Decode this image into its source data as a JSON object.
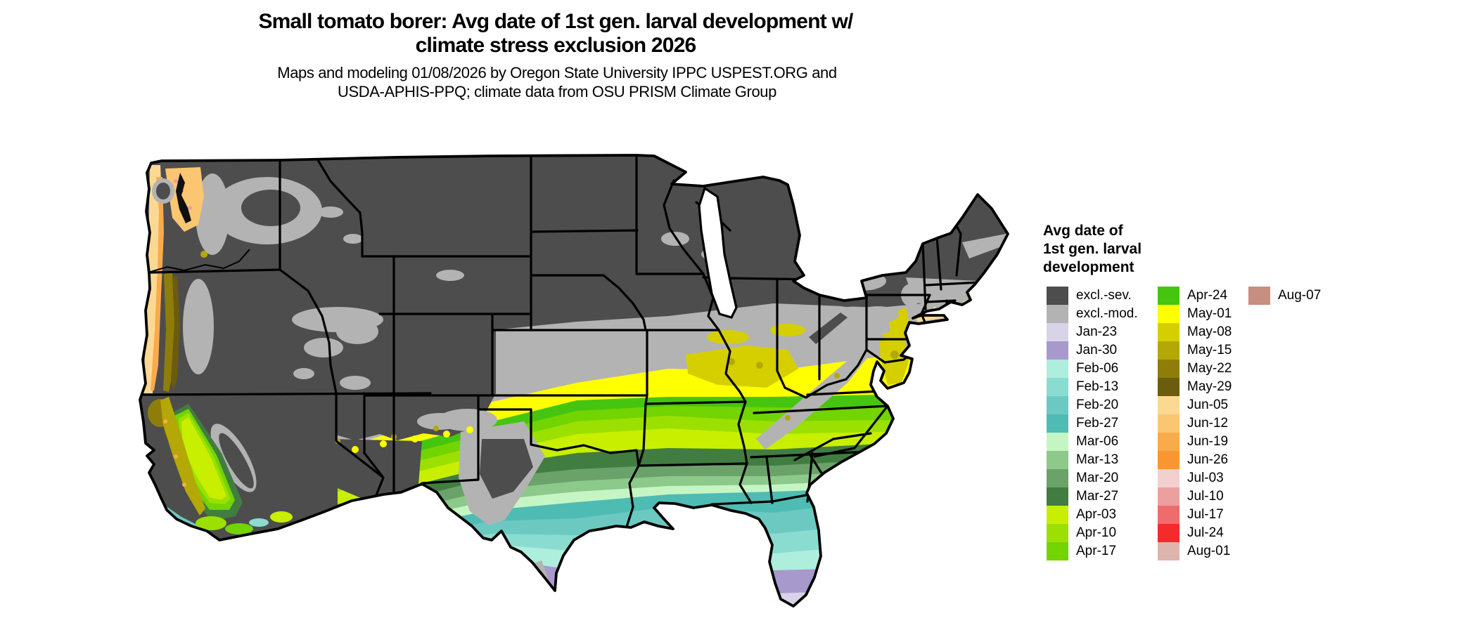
{
  "title": {
    "line1": "Small tomato borer: Avg date of 1st gen. larval development w/",
    "line2": "climate stress exclusion 2026"
  },
  "subtitle": {
    "line1": "Maps and modeling 01/08/2026 by Oregon State University IPPC USPEST.ORG and",
    "line2": "USDA-APHIS-PPQ; climate data from OSU PRISM Climate Group"
  },
  "legend": {
    "title_lines": [
      "Avg date of",
      "1st gen. larval",
      "development"
    ],
    "columns": [
      [
        {
          "label": "excl.-sev.",
          "color": "#4d4d4d"
        },
        {
          "label": "excl.-mod.",
          "color": "#b3b3b3"
        },
        {
          "label": "Jan-23",
          "color": "#d9d3e8"
        },
        {
          "label": "Jan-30",
          "color": "#a899cc"
        },
        {
          "label": "Feb-06",
          "color": "#aeeedd"
        },
        {
          "label": "Feb-13",
          "color": "#8adcd0"
        },
        {
          "label": "Feb-20",
          "color": "#6cc9c2"
        },
        {
          "label": "Feb-27",
          "color": "#4fbcb3"
        },
        {
          "label": "Mar-06",
          "color": "#c6f5c4"
        },
        {
          "label": "Mar-13",
          "color": "#8cc98a"
        },
        {
          "label": "Mar-20",
          "color": "#6ba269"
        },
        {
          "label": "Mar-27",
          "color": "#417d41"
        },
        {
          "label": "Apr-03",
          "color": "#c8ef00"
        },
        {
          "label": "Apr-10",
          "color": "#9be000"
        },
        {
          "label": "Apr-17",
          "color": "#72d400"
        }
      ],
      [
        {
          "label": "Apr-24",
          "color": "#46c510"
        },
        {
          "label": "May-01",
          "color": "#ffff00"
        },
        {
          "label": "May-08",
          "color": "#d6cf00"
        },
        {
          "label": "May-15",
          "color": "#b3a805"
        },
        {
          "label": "May-22",
          "color": "#8f7d0a"
        },
        {
          "label": "May-29",
          "color": "#6b5c0e"
        },
        {
          "label": "Jun-05",
          "color": "#fcd993"
        },
        {
          "label": "Jun-12",
          "color": "#fbc671"
        },
        {
          "label": "Jun-19",
          "color": "#f9ab4c"
        },
        {
          "label": "Jun-26",
          "color": "#f89631"
        },
        {
          "label": "Jul-03",
          "color": "#f2d0d0"
        },
        {
          "label": "Jul-10",
          "color": "#ec9f9f"
        },
        {
          "label": "Jul-17",
          "color": "#ef6c6c"
        },
        {
          "label": "Jul-24",
          "color": "#f52a2a"
        },
        {
          "label": "Aug-01",
          "color": "#dfb4ac"
        }
      ],
      [
        {
          "label": "Aug-07",
          "color": "#c68f7f"
        }
      ]
    ]
  },
  "map": {
    "border_color": "#000000",
    "water_color": "#ffffff",
    "excluded_severe_color": "#4d4d4d",
    "excluded_moderate_color": "#b3b3b3"
  }
}
